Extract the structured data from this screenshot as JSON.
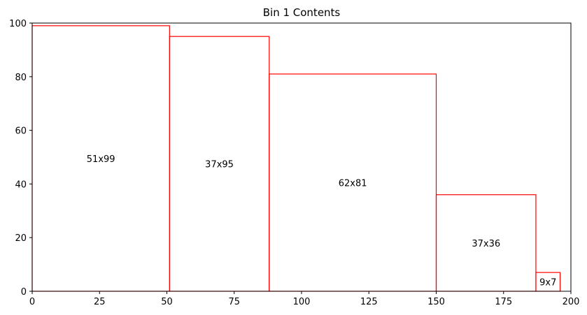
{
  "chart_data": {
    "type": "bar",
    "title": "Bin 1 Contents",
    "xlabel": "",
    "ylabel": "",
    "xlim": [
      0,
      200
    ],
    "ylim": [
      0,
      100
    ],
    "xticks": [
      0,
      25,
      50,
      75,
      100,
      125,
      150,
      175,
      200
    ],
    "yticks": [
      0,
      20,
      40,
      60,
      80,
      100
    ],
    "grid": false,
    "edge_color": "#ff0000",
    "items": [
      {
        "label": "51x99",
        "x": 0,
        "y": 0,
        "width": 51,
        "height": 99
      },
      {
        "label": "37x95",
        "x": 51,
        "y": 0,
        "width": 37,
        "height": 95
      },
      {
        "label": "62x81",
        "x": 88,
        "y": 0,
        "width": 62,
        "height": 81
      },
      {
        "label": "37x36",
        "x": 150,
        "y": 0,
        "width": 37,
        "height": 36
      },
      {
        "label": "9x7",
        "x": 187,
        "y": 0,
        "width": 9,
        "height": 7
      }
    ]
  }
}
